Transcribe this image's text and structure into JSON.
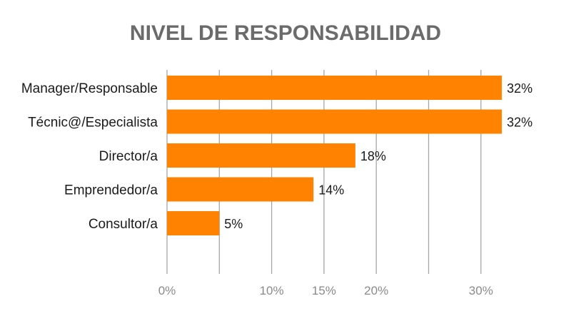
{
  "chart_data": {
    "type": "bar",
    "orientation": "horizontal",
    "title": "NIVEL DE RESPONSABILIDAD",
    "xlabel": "",
    "ylabel": "",
    "categories": [
      "Manager/Responsable",
      "Técnic@/Especialista",
      "Director/a",
      "Emprendedor/a",
      "Consultor/a"
    ],
    "values": [
      32,
      32,
      18,
      14,
      5
    ],
    "value_labels": [
      "32%",
      "32%",
      "18%",
      "14%",
      "5%"
    ],
    "xlim": [
      0,
      30
    ],
    "gridlines": [
      0,
      5,
      10,
      15,
      20,
      25,
      30
    ],
    "tick_labels": [
      "0%",
      "10%",
      "15%",
      "20%",
      "30%"
    ],
    "tick_values": [
      0,
      10,
      15,
      20,
      30
    ],
    "grid": true,
    "legend": "none",
    "bar_color": "#ff8200"
  }
}
